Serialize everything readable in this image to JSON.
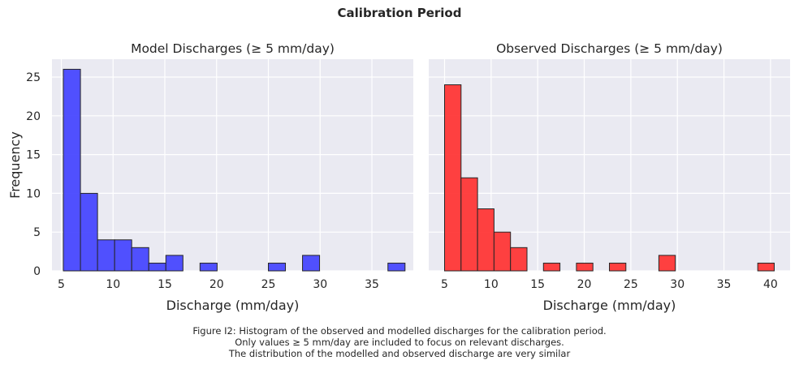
{
  "figure": {
    "suptitle": "Calibration Period",
    "caption": [
      "Figure I2: Histogram of the observed and modelled discharges for the calibration period.",
      "Only values ≥ 5 mm/day are included to focus on relevant discharges.",
      "The distribution of the modelled and observed discharge are very similar"
    ]
  },
  "chart_data": [
    {
      "type": "bar",
      "histogram": true,
      "title": "Model Discharges (≥ 5 mm/day)",
      "xlabel": "Discharge (mm/day)",
      "ylabel": "Frequency",
      "color": "#4444ff",
      "edge_color": "#262626",
      "background": "#eaeaf2",
      "grid": true,
      "xlim": [
        4.1,
        39.0
      ],
      "ylim": [
        0,
        27.3
      ],
      "xticks": [
        5,
        10,
        15,
        20,
        25,
        30,
        35
      ],
      "yticks": [
        0,
        5,
        10,
        15,
        20,
        25
      ],
      "bin_edges": [
        5.2,
        6.85,
        8.5,
        10.15,
        11.8,
        13.45,
        15.1,
        16.75,
        18.4,
        20.05,
        21.7,
        23.35,
        25.0,
        26.65,
        28.3,
        29.95,
        31.6,
        33.25,
        34.9,
        36.55,
        38.2
      ],
      "values": [
        26,
        10,
        4,
        4,
        3,
        1,
        2,
        0,
        1,
        0,
        0,
        0,
        1,
        0,
        2,
        0,
        0,
        0,
        0,
        1
      ]
    },
    {
      "type": "bar",
      "histogram": true,
      "title": "Observed Discharges (≥ 5 mm/day)",
      "xlabel": "Discharge (mm/day)",
      "ylabel": "",
      "color": "#ff3333",
      "edge_color": "#262626",
      "background": "#eaeaf2",
      "grid": true,
      "xlim": [
        3.3,
        42.1
      ],
      "ylim": [
        0,
        27.3
      ],
      "xticks": [
        5,
        10,
        15,
        20,
        25,
        30,
        35,
        40
      ],
      "yticks": [
        0,
        5,
        10,
        15,
        20,
        25
      ],
      "bin_edges": [
        5.0,
        6.77,
        8.54,
        10.31,
        12.08,
        13.85,
        15.62,
        17.39,
        19.16,
        20.93,
        22.7,
        24.47,
        26.24,
        28.01,
        29.78,
        31.55,
        33.32,
        35.09,
        36.86,
        38.63,
        40.4
      ],
      "values": [
        24,
        12,
        8,
        5,
        3,
        0,
        1,
        0,
        1,
        0,
        1,
        0,
        0,
        2,
        0,
        0,
        0,
        0,
        0,
        1
      ]
    }
  ]
}
